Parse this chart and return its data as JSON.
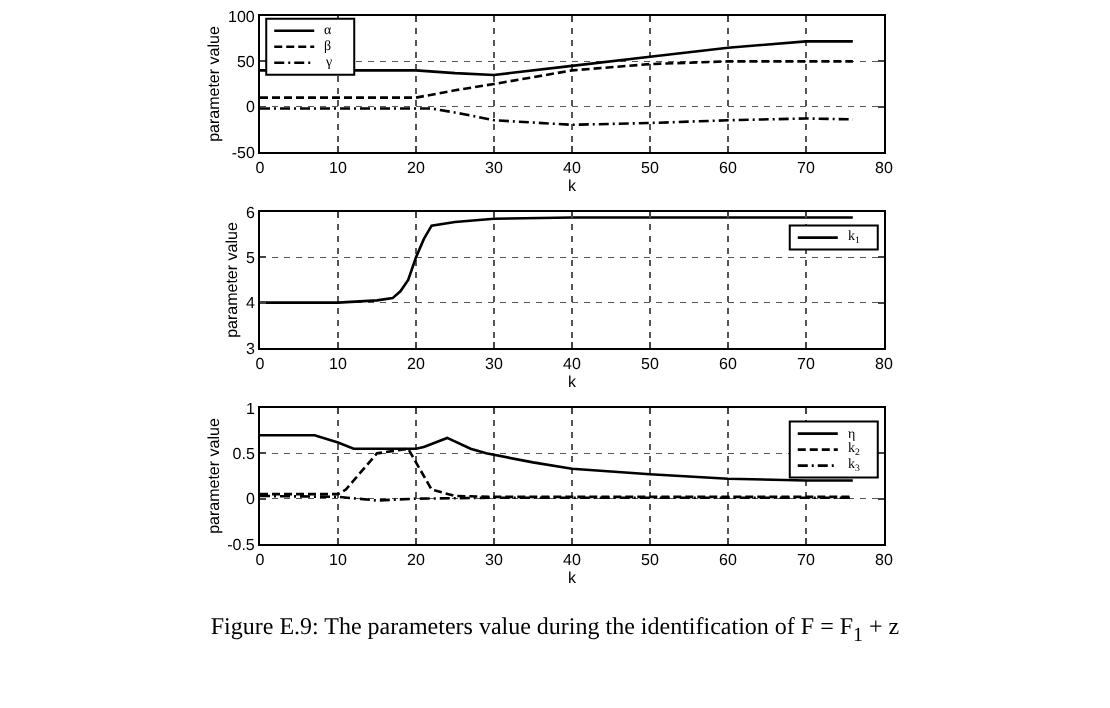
{
  "chart_data": [
    {
      "type": "line",
      "xlabel": "k",
      "ylabel": "parameter value",
      "xlim": [
        0,
        80
      ],
      "xticks": [
        0,
        10,
        20,
        30,
        40,
        50,
        60,
        70,
        80
      ],
      "ylim": [
        -50,
        100
      ],
      "yticks": [
        -50,
        0,
        50,
        100
      ],
      "grid": true,
      "legend": "top left",
      "marker": "none",
      "series": [
        {
          "name": "α",
          "color": "#000000",
          "line_style": "solid",
          "x": [
            0,
            20,
            25,
            30,
            40,
            50,
            60,
            70,
            76
          ],
          "values": [
            40,
            40,
            37,
            35,
            45,
            55,
            65,
            72,
            72
          ]
        },
        {
          "name": "β",
          "color": "#000000",
          "line_style": "dashed",
          "x": [
            0,
            20,
            25,
            30,
            40,
            50,
            60,
            70,
            76
          ],
          "values": [
            10,
            10,
            18,
            25,
            40,
            47,
            50,
            50,
            50
          ]
        },
        {
          "name": "γ",
          "color": "#000000",
          "line_style": "dashdot",
          "x": [
            0,
            20,
            22,
            26,
            30,
            40,
            50,
            60,
            70,
            76
          ],
          "values": [
            -2,
            -2,
            -2,
            -8,
            -15,
            -20,
            -18,
            -15,
            -13,
            -14
          ]
        }
      ]
    },
    {
      "type": "line",
      "xlabel": "k",
      "ylabel": "parameter value",
      "xlim": [
        0,
        80
      ],
      "xticks": [
        0,
        10,
        20,
        30,
        40,
        50,
        60,
        70,
        80
      ],
      "ylim": [
        3,
        6
      ],
      "yticks": [
        3,
        4,
        5,
        6
      ],
      "grid": true,
      "legend": "top right",
      "marker": "none",
      "series": [
        {
          "name": "k$_{1}$",
          "color": "#000000",
          "line_style": "solid",
          "x": [
            0,
            10,
            15,
            17,
            18,
            19,
            20,
            21,
            22,
            25,
            30,
            40,
            76
          ],
          "values": [
            4,
            4,
            4.05,
            4.1,
            4.25,
            4.5,
            5,
            5.4,
            5.7,
            5.78,
            5.85,
            5.88,
            5.88
          ]
        }
      ]
    },
    {
      "type": "line",
      "xlabel": "k",
      "ylabel": "parameter value",
      "xlim": [
        0,
        80
      ],
      "xticks": [
        0,
        10,
        20,
        30,
        40,
        50,
        60,
        70,
        80
      ],
      "ylim": [
        -0.5,
        1
      ],
      "yticks": [
        -0.5,
        0,
        0.5,
        1
      ],
      "grid": true,
      "legend": "top right",
      "marker": "none",
      "annotations": [
        "Figure E.9: The parameters value during the identification of F = F$_{1}$ + z"
      ],
      "series": [
        {
          "name": "η",
          "color": "#000000",
          "line_style": "solid",
          "x": [
            0,
            7,
            10,
            12,
            20,
            21,
            24,
            27,
            29,
            35,
            40,
            50,
            60,
            70,
            76
          ],
          "values": [
            0.7,
            0.7,
            0.62,
            0.55,
            0.55,
            0.57,
            0.67,
            0.55,
            0.5,
            0.4,
            0.33,
            0.27,
            0.22,
            0.2,
            0.2
          ]
        },
        {
          "name": "k$_{2}$",
          "color": "#000000",
          "line_style": "dashed",
          "x": [
            0,
            10,
            11,
            15,
            19,
            22,
            25,
            30,
            76
          ],
          "values": [
            0.05,
            0.05,
            0.1,
            0.5,
            0.55,
            0.1,
            0.03,
            0.02,
            0.02
          ]
        },
        {
          "name": "k$_{3}$",
          "color": "#000000",
          "line_style": "dashdot",
          "x": [
            0,
            10,
            15,
            20,
            30,
            76
          ],
          "values": [
            0.03,
            0.02,
            -0.02,
            0,
            0.01,
            0.01
          ]
        }
      ]
    }
  ]
}
